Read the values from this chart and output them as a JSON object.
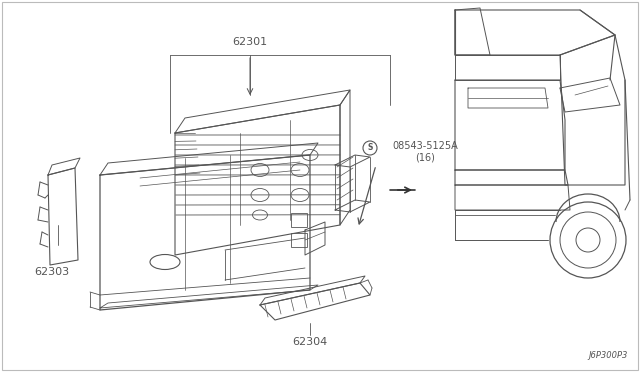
{
  "background_color": "#ffffff",
  "line_color": "#555555",
  "text_color": "#555555",
  "diagram_code": "J6P300P3",
  "figsize": [
    6.4,
    3.72
  ],
  "dpi": 100
}
